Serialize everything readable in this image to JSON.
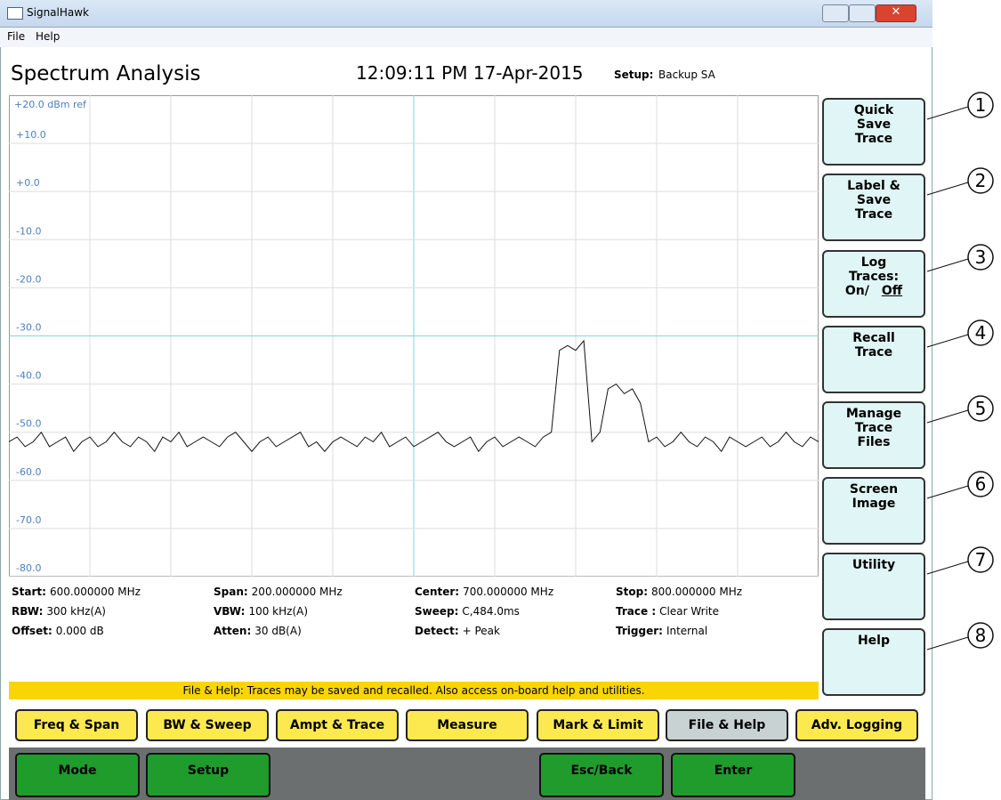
{
  "window": {
    "title": "SignalHawk",
    "menu": [
      "File",
      "Help"
    ]
  },
  "header": {
    "title": "Spectrum Analysis",
    "time": "12:09:11 PM 17-Apr-2015",
    "setup_label": "Setup:",
    "setup_value": "Backup SA"
  },
  "spectrum": {
    "ref_label": "+20.0 dBm ref",
    "xlim": [
      600,
      800
    ],
    "ylim": [
      -80,
      20
    ],
    "yticks": [
      {
        "value": 10,
        "label": "+10.0"
      },
      {
        "value": 0,
        "label": "+0.0"
      },
      {
        "value": -10,
        "label": "-10.0"
      },
      {
        "value": -20,
        "label": "-20.0"
      },
      {
        "value": -30,
        "label": "-30.0"
      },
      {
        "value": -40,
        "label": "-40.0"
      },
      {
        "value": -50,
        "label": "-50.0"
      },
      {
        "value": -60,
        "label": "-60.0"
      },
      {
        "value": -70,
        "label": "-70.0"
      },
      {
        "value": -80,
        "label": "-80.0"
      }
    ],
    "trace": {
      "x": [
        600,
        602,
        604,
        606,
        608,
        610,
        612,
        614,
        616,
        618,
        620,
        622,
        624,
        626,
        628,
        630,
        632,
        634,
        636,
        638,
        640,
        642,
        644,
        646,
        648,
        650,
        652,
        654,
        656,
        658,
        660,
        662,
        664,
        666,
        668,
        670,
        672,
        674,
        676,
        678,
        680,
        682,
        684,
        686,
        688,
        690,
        692,
        694,
        696,
        698,
        700,
        702,
        704,
        706,
        708,
        710,
        712,
        714,
        716,
        718,
        720,
        722,
        724,
        726,
        728,
        730,
        732,
        734,
        736,
        738,
        740,
        742,
        744,
        746,
        748,
        750,
        752,
        754,
        756,
        758,
        760,
        762,
        764,
        766,
        768,
        770,
        772,
        774,
        776,
        778,
        780,
        782,
        784,
        786,
        788,
        790,
        792,
        794,
        796,
        798,
        800
      ],
      "values": [
        -52,
        -51,
        -53,
        -52,
        -50,
        -53,
        -52,
        -51,
        -54,
        -52,
        -51,
        -53,
        -52,
        -50,
        -52,
        -53,
        -51,
        -52,
        -54,
        -51,
        -52,
        -50,
        -53,
        -52,
        -51,
        -52,
        -53,
        -51,
        -50,
        -52,
        -54,
        -52,
        -51,
        -53,
        -52,
        -51,
        -50,
        -53,
        -52,
        -54,
        -52,
        -51,
        -52,
        -53,
        -51,
        -52,
        -50,
        -53,
        -52,
        -51,
        -53,
        -52,
        -51,
        -50,
        -52,
        -53,
        -52,
        -51,
        -54,
        -52,
        -51,
        -53,
        -52,
        -51,
        -52,
        -53,
        -51,
        -50,
        -33,
        -32,
        -33,
        -31,
        -52,
        -50,
        -41,
        -40,
        -42,
        -41,
        -44,
        -52,
        -51,
        -53,
        -52,
        -50,
        -52,
        -53,
        -51,
        -52,
        -54,
        -51,
        -52,
        -53,
        -52,
        -51,
        -53,
        -52,
        -50,
        -52,
        -53,
        -51,
        -52
      ]
    }
  },
  "readouts": [
    [
      {
        "label": "Start:",
        "value": "600.000000 MHz"
      },
      {
        "label": "Span:",
        "value": "200.000000 MHz"
      },
      {
        "label": "Center:",
        "value": "700.000000 MHz"
      },
      {
        "label": "Stop:",
        "value": "800.000000 MHz"
      }
    ],
    [
      {
        "label": "RBW:",
        "value": "300 kHz(A)"
      },
      {
        "label": "VBW:",
        "value": "100 kHz(A)"
      },
      {
        "label": "Sweep:",
        "value": "C,484.0ms"
      },
      {
        "label": "Trace :",
        "value": "Clear Write"
      }
    ],
    [
      {
        "label": "Offset:",
        "value": "0.000 dB"
      },
      {
        "label": "Atten:",
        "value": "30 dB(A)"
      },
      {
        "label": "Detect:",
        "value": "+ Peak"
      },
      {
        "label": "Trigger:",
        "value": "Internal"
      }
    ]
  ],
  "status": "File & Help: Traces may be saved and recalled. Also access on-board help and utilities.",
  "side_buttons": [
    [
      "Quick",
      "Save",
      "Trace"
    ],
    [
      "Label &",
      "Save",
      "Trace"
    ],
    [
      "Log",
      "Traces:",
      "On/",
      "Off"
    ],
    [
      "Recall",
      "Trace"
    ],
    [
      "Manage",
      "Trace",
      "Files"
    ],
    [
      "Screen",
      "Image"
    ],
    [
      "Utility"
    ],
    [
      "Help"
    ]
  ],
  "callouts": [
    "1",
    "2",
    "3",
    "4",
    "5",
    "6",
    "7",
    "8"
  ],
  "tabs": [
    "Freq & Span",
    "BW & Sweep",
    "Ampt &  Trace",
    "Measure",
    "Mark & Limit",
    "File & Help",
    "Adv. Logging"
  ],
  "bottom_buttons": [
    "Mode",
    "Setup",
    "Esc/Back",
    "Enter"
  ]
}
